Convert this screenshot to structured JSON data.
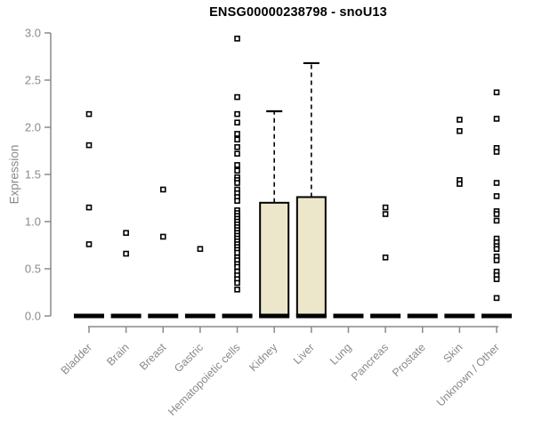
{
  "chart_data": {
    "type": "boxplot",
    "title": "ENSG00000238798 - snoU13",
    "xlabel": "",
    "ylabel": "Expression",
    "ylim": [
      0.0,
      3.0
    ],
    "yticks": [
      0.0,
      0.5,
      1.0,
      1.5,
      2.0,
      2.5,
      3.0
    ],
    "grid": false,
    "legend": false,
    "categories": [
      "Bladder",
      "Brain",
      "Breast",
      "Gastric",
      "Hematopoietic cells",
      "Kidney",
      "Liver",
      "Lung",
      "Pancreas",
      "Prostate",
      "Skin",
      "Unknown / Other"
    ],
    "boxes": [
      {
        "category": "Bladder",
        "whisker_low": 0,
        "q1": 0,
        "median": 0,
        "q3": 0,
        "whisker_high": 0,
        "outliers": [
          2.14,
          1.81,
          1.15,
          0.76
        ]
      },
      {
        "category": "Brain",
        "whisker_low": 0,
        "q1": 0,
        "median": 0,
        "q3": 0,
        "whisker_high": 0,
        "outliers": [
          0.88,
          0.66
        ]
      },
      {
        "category": "Breast",
        "whisker_low": 0,
        "q1": 0,
        "median": 0,
        "q3": 0,
        "whisker_high": 0,
        "outliers": [
          1.34,
          0.84
        ]
      },
      {
        "category": "Gastric",
        "whisker_low": 0,
        "q1": 0,
        "median": 0,
        "q3": 0,
        "whisker_high": 0,
        "outliers": [
          0.71
        ]
      },
      {
        "category": "Hematopoietic cells",
        "whisker_low": 0,
        "q1": 0,
        "median": 0,
        "q3": 0,
        "whisker_high": 0,
        "outliers": [
          2.94,
          2.32,
          2.14,
          2.05,
          1.93,
          1.87,
          1.79,
          1.72,
          1.6,
          1.54,
          1.47,
          1.44,
          1.41,
          1.34,
          1.3,
          1.26,
          1.22,
          1.12,
          1.09,
          1.06,
          1.03,
          1.0,
          0.97,
          0.94,
          0.91,
          0.88,
          0.85,
          0.82,
          0.79,
          0.76,
          0.73,
          0.7,
          0.67,
          0.62,
          0.59,
          0.55,
          0.52,
          0.47,
          0.43,
          0.39,
          0.35,
          0.28
        ]
      },
      {
        "category": "Kidney",
        "whisker_low": 0,
        "q1": 0,
        "median": 0,
        "q3": 1.2,
        "whisker_high": 2.17,
        "outliers": []
      },
      {
        "category": "Liver",
        "whisker_low": 0,
        "q1": 0,
        "median": 0,
        "q3": 1.26,
        "whisker_high": 2.68,
        "outliers": []
      },
      {
        "category": "Lung",
        "whisker_low": 0,
        "q1": 0,
        "median": 0,
        "q3": 0,
        "whisker_high": 0,
        "outliers": []
      },
      {
        "category": "Pancreas",
        "whisker_low": 0,
        "q1": 0,
        "median": 0,
        "q3": 0,
        "whisker_high": 0,
        "outliers": [
          1.15,
          1.08,
          0.62
        ]
      },
      {
        "category": "Prostate",
        "whisker_low": 0,
        "q1": 0,
        "median": 0,
        "q3": 0,
        "whisker_high": 0,
        "outliers": []
      },
      {
        "category": "Skin",
        "whisker_low": 0,
        "q1": 0,
        "median": 0,
        "q3": 0,
        "whisker_high": 0,
        "outliers": [
          2.08,
          1.96,
          1.44,
          1.4
        ]
      },
      {
        "category": "Unknown / Other",
        "whisker_low": 0,
        "q1": 0,
        "median": 0,
        "q3": 0,
        "whisker_high": 0,
        "outliers": [
          2.37,
          2.09,
          1.78,
          1.74,
          1.41,
          1.27,
          1.11,
          1.08,
          1.01,
          0.82,
          0.78,
          0.74,
          0.71,
          0.63,
          0.59,
          0.47,
          0.43,
          0.39,
          0.19
        ]
      }
    ],
    "colors": {
      "box_fill": "#ece7cb",
      "box_border": "#000000",
      "median": "#000000",
      "whisker": "#000000",
      "outlier_stroke": "#000000",
      "outlier_fill": "#ffffff",
      "axis": "#8a8a8a",
      "tick_text": "#8a8a8a",
      "title_text": "#000000"
    }
  }
}
